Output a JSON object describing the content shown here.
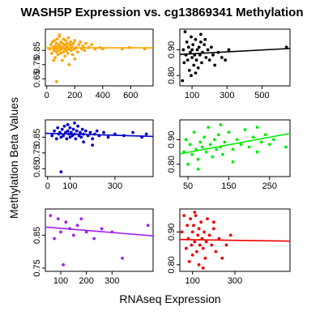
{
  "title": "WASH5P Expression vs. cg13869341 Methylation",
  "xlabel": "RNAseq Expression",
  "ylabel": "Methylation Beta Values",
  "chart_data": [
    {
      "type": "scatter",
      "color": "#FFA500",
      "xlim": [
        -10,
        760
      ],
      "ylim": [
        0.6,
        1.0
      ],
      "xticks": [
        0,
        200,
        400,
        600
      ],
      "yticks": [
        0.65,
        0.75,
        0.85
      ],
      "trend": {
        "y_at_xmin": 0.868,
        "y_at_xmax": 0.868
      },
      "points": [
        [
          20,
          0.86
        ],
        [
          30,
          0.89
        ],
        [
          35,
          0.83
        ],
        [
          40,
          0.91
        ],
        [
          45,
          0.87
        ],
        [
          50,
          0.85
        ],
        [
          55,
          0.92
        ],
        [
          60,
          0.88
        ],
        [
          60,
          0.8
        ],
        [
          65,
          0.86
        ],
        [
          70,
          0.9
        ],
        [
          70,
          0.84
        ],
        [
          75,
          0.93
        ],
        [
          80,
          0.87
        ],
        [
          80,
          0.82
        ],
        [
          85,
          0.89
        ],
        [
          90,
          0.85
        ],
        [
          90,
          0.95
        ],
        [
          95,
          0.88
        ],
        [
          100,
          0.91
        ],
        [
          100,
          0.83
        ],
        [
          105,
          0.86
        ],
        [
          110,
          0.9
        ],
        [
          110,
          0.78
        ],
        [
          115,
          0.87
        ],
        [
          120,
          0.93
        ],
        [
          120,
          0.84
        ],
        [
          125,
          0.89
        ],
        [
          130,
          0.86
        ],
        [
          130,
          0.81
        ],
        [
          135,
          0.92
        ],
        [
          140,
          0.88
        ],
        [
          140,
          0.85
        ],
        [
          145,
          0.9
        ],
        [
          150,
          0.87
        ],
        [
          150,
          0.83
        ],
        [
          155,
          0.94
        ],
        [
          160,
          0.86
        ],
        [
          165,
          0.89
        ],
        [
          170,
          0.91
        ],
        [
          175,
          0.85
        ],
        [
          180,
          0.88
        ],
        [
          185,
          0.82
        ],
        [
          190,
          0.9
        ],
        [
          195,
          0.86
        ],
        [
          200,
          0.92
        ],
        [
          210,
          0.87
        ],
        [
          220,
          0.84
        ],
        [
          230,
          0.89
        ],
        [
          240,
          0.91
        ],
        [
          250,
          0.86
        ],
        [
          260,
          0.88
        ],
        [
          270,
          0.85
        ],
        [
          280,
          0.9
        ],
        [
          300,
          0.87
        ],
        [
          320,
          0.89
        ],
        [
          345,
          0.86
        ],
        [
          70,
          0.63
        ],
        [
          160,
          0.75
        ],
        [
          50,
          0.78
        ],
        [
          90,
          0.96
        ],
        [
          200,
          0.79
        ],
        [
          380,
          0.87
        ],
        [
          400,
          0.86
        ],
        [
          540,
          0.86
        ],
        [
          590,
          0.87
        ],
        [
          700,
          0.86
        ]
      ]
    },
    {
      "type": "scatter",
      "color": "#000000",
      "xlim": [
        30,
        660
      ],
      "ylim": [
        0.76,
        0.98
      ],
      "xticks": [
        100,
        300,
        500
      ],
      "yticks": [
        0.8,
        0.9
      ],
      "trend": {
        "y_at_xmin": 0.882,
        "y_at_xmax": 0.905
      },
      "points": [
        [
          45,
          0.78
        ],
        [
          50,
          0.9
        ],
        [
          55,
          0.85
        ],
        [
          60,
          0.97
        ],
        [
          65,
          0.88
        ],
        [
          70,
          0.93
        ],
        [
          75,
          0.86
        ],
        [
          80,
          0.91
        ],
        [
          85,
          0.82
        ],
        [
          90,
          0.89
        ],
        [
          95,
          0.95
        ],
        [
          100,
          0.87
        ],
        [
          100,
          0.9
        ],
        [
          105,
          0.92
        ],
        [
          110,
          0.84
        ],
        [
          115,
          0.88
        ],
        [
          120,
          0.94
        ],
        [
          125,
          0.86
        ],
        [
          130,
          0.9
        ],
        [
          135,
          0.83
        ],
        [
          140,
          0.91
        ],
        [
          145,
          0.88
        ],
        [
          150,
          0.93
        ],
        [
          155,
          0.85
        ],
        [
          160,
          0.89
        ],
        [
          170,
          0.92
        ],
        [
          180,
          0.87
        ],
        [
          190,
          0.9
        ],
        [
          200,
          0.86
        ],
        [
          210,
          0.91
        ],
        [
          220,
          0.88
        ],
        [
          230,
          0.84
        ],
        [
          250,
          0.89
        ],
        [
          270,
          0.87
        ],
        [
          290,
          0.86
        ],
        [
          310,
          0.9
        ],
        [
          95,
          0.8
        ],
        [
          120,
          0.81
        ],
        [
          150,
          0.96
        ],
        [
          175,
          0.94
        ],
        [
          640,
          0.91
        ]
      ]
    },
    {
      "type": "scatter",
      "color": "#0000CD",
      "xlim": [
        -10,
        470
      ],
      "ylim": [
        0.6,
        0.96
      ],
      "xticks": [
        0,
        100,
        300
      ],
      "yticks": [
        0.65,
        0.75,
        0.85
      ],
      "trend": {
        "y_at_xmin": 0.875,
        "y_at_xmax": 0.855
      },
      "points": [
        [
          20,
          0.86
        ],
        [
          30,
          0.89
        ],
        [
          40,
          0.84
        ],
        [
          45,
          0.91
        ],
        [
          50,
          0.87
        ],
        [
          55,
          0.88
        ],
        [
          60,
          0.85
        ],
        [
          65,
          0.9
        ],
        [
          70,
          0.86
        ],
        [
          75,
          0.92
        ],
        [
          80,
          0.88
        ],
        [
          85,
          0.84
        ],
        [
          90,
          0.89
        ],
        [
          95,
          0.87
        ],
        [
          100,
          0.91
        ],
        [
          100,
          0.85
        ],
        [
          105,
          0.88
        ],
        [
          110,
          0.86
        ],
        [
          115,
          0.9
        ],
        [
          120,
          0.87
        ],
        [
          125,
          0.84
        ],
        [
          130,
          0.89
        ],
        [
          135,
          0.92
        ],
        [
          140,
          0.86
        ],
        [
          145,
          0.88
        ],
        [
          150,
          0.85
        ],
        [
          155,
          0.9
        ],
        [
          160,
          0.87
        ],
        [
          170,
          0.89
        ],
        [
          180,
          0.86
        ],
        [
          190,
          0.88
        ],
        [
          200,
          0.84
        ],
        [
          210,
          0.87
        ],
        [
          220,
          0.89
        ],
        [
          230,
          0.86
        ],
        [
          250,
          0.88
        ],
        [
          270,
          0.85
        ],
        [
          300,
          0.87
        ],
        [
          340,
          0.86
        ],
        [
          380,
          0.88
        ],
        [
          420,
          0.85
        ],
        [
          440,
          0.87
        ],
        [
          60,
          0.63
        ],
        [
          120,
          0.94
        ],
        [
          90,
          0.93
        ],
        [
          160,
          0.82
        ],
        [
          200,
          0.8
        ]
      ]
    },
    {
      "type": "scatter",
      "color": "#00EE00",
      "xlim": [
        30,
        300
      ],
      "ylim": [
        0.75,
        0.98
      ],
      "xticks": [
        50,
        150,
        250
      ],
      "yticks": [
        0.8,
        0.9
      ],
      "trend": {
        "y_at_xmin": 0.842,
        "y_at_xmax": 0.925
      },
      "points": [
        [
          40,
          0.85
        ],
        [
          45,
          0.9
        ],
        [
          50,
          0.8
        ],
        [
          55,
          0.88
        ],
        [
          60,
          0.84
        ],
        [
          65,
          0.93
        ],
        [
          70,
          0.86
        ],
        [
          75,
          0.82
        ],
        [
          80,
          0.89
        ],
        [
          85,
          0.87
        ],
        [
          90,
          0.91
        ],
        [
          95,
          0.85
        ],
        [
          100,
          0.95
        ],
        [
          105,
          0.88
        ],
        [
          110,
          0.83
        ],
        [
          115,
          0.9
        ],
        [
          120,
          0.86
        ],
        [
          125,
          0.92
        ],
        [
          130,
          0.87
        ],
        [
          135,
          0.84
        ],
        [
          140,
          0.89
        ],
        [
          150,
          0.93
        ],
        [
          160,
          0.86
        ],
        [
          170,
          0.9
        ],
        [
          180,
          0.88
        ],
        [
          190,
          0.94
        ],
        [
          200,
          0.87
        ],
        [
          210,
          0.91
        ],
        [
          220,
          0.85
        ],
        [
          230,
          0.89
        ],
        [
          240,
          0.92
        ],
        [
          250,
          0.88
        ],
        [
          260,
          0.9
        ],
        [
          290,
          0.87
        ],
        [
          75,
          0.78
        ],
        [
          130,
          0.96
        ],
        [
          160,
          0.81
        ],
        [
          220,
          0.95
        ]
      ]
    },
    {
      "type": "scatter",
      "color": "#A020F0",
      "xlim": [
        40,
        460
      ],
      "ylim": [
        0.74,
        0.93
      ],
      "xticks": [
        100,
        200,
        300
      ],
      "yticks": [
        0.75,
        0.85
      ],
      "trend": {
        "y_at_xmin": 0.875,
        "y_at_xmax": 0.848
      },
      "points": [
        [
          60,
          0.91
        ],
        [
          75,
          0.84
        ],
        [
          90,
          0.9
        ],
        [
          100,
          0.86
        ],
        [
          110,
          0.76
        ],
        [
          120,
          0.89
        ],
        [
          135,
          0.87
        ],
        [
          150,
          0.85
        ],
        [
          165,
          0.88
        ],
        [
          180,
          0.9
        ],
        [
          200,
          0.86
        ],
        [
          230,
          0.84
        ],
        [
          260,
          0.87
        ],
        [
          300,
          0.86
        ],
        [
          340,
          0.78
        ],
        [
          440,
          0.88
        ]
      ]
    },
    {
      "type": "scatter",
      "color": "#EE0000",
      "xlim": [
        40,
        560
      ],
      "ylim": [
        0.78,
        0.97
      ],
      "xticks": [
        100,
        300
      ],
      "yticks": [
        0.8,
        0.9
      ],
      "trend": {
        "y_at_xmin": 0.877,
        "y_at_xmax": 0.872
      },
      "points": [
        [
          50,
          0.9
        ],
        [
          60,
          0.95
        ],
        [
          70,
          0.85
        ],
        [
          75,
          0.92
        ],
        [
          80,
          0.88
        ],
        [
          85,
          0.81
        ],
        [
          90,
          0.94
        ],
        [
          95,
          0.86
        ],
        [
          100,
          0.9
        ],
        [
          100,
          0.83
        ],
        [
          105,
          0.92
        ],
        [
          110,
          0.87
        ],
        [
          115,
          0.95
        ],
        [
          120,
          0.84
        ],
        [
          125,
          0.89
        ],
        [
          130,
          0.91
        ],
        [
          130,
          0.8
        ],
        [
          135,
          0.86
        ],
        [
          140,
          0.93
        ],
        [
          145,
          0.88
        ],
        [
          150,
          0.85
        ],
        [
          155,
          0.9
        ],
        [
          160,
          0.82
        ],
        [
          165,
          0.87
        ],
        [
          170,
          0.94
        ],
        [
          180,
          0.89
        ],
        [
          190,
          0.86
        ],
        [
          200,
          0.91
        ],
        [
          210,
          0.84
        ],
        [
          225,
          0.88
        ],
        [
          240,
          0.82
        ],
        [
          260,
          0.86
        ],
        [
          280,
          0.89
        ],
        [
          110,
          0.96
        ],
        [
          150,
          0.79
        ],
        [
          200,
          0.93
        ]
      ]
    }
  ]
}
